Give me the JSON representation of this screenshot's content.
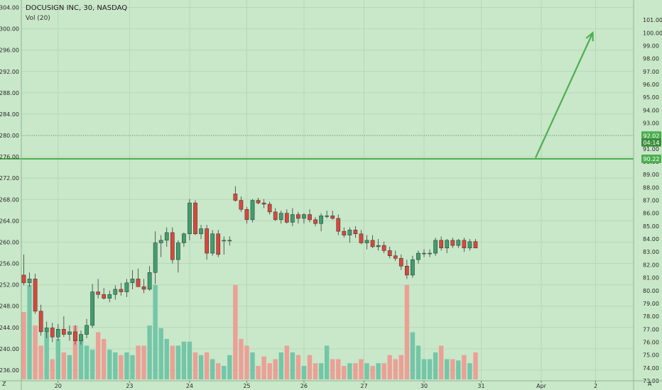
{
  "title": "DOCUSIGN INC, 30, NASDAQ",
  "subtitle": "Vol (20)",
  "corner_left": "Z",
  "corner_right": "A",
  "colors": {
    "background": "#c9e7c9",
    "grid": "#b7d8b7",
    "up": "#3e9f6e",
    "down": "#d9473b",
    "vol_up": "#74c6a8",
    "vol_down": "#eba096",
    "support_line": "#4caf50",
    "arrow": "#4caf50",
    "badge": "#4caf50",
    "badge_dark": "#3b8f3b",
    "axis_text": "#2b2b2b"
  },
  "chart_data": {
    "type": "candlestick",
    "left_axis": {
      "ticks": [
        "236.00",
        "240.00",
        "244.00",
        "248.00",
        "252.00",
        "256.00",
        "260.00",
        "264.00",
        "268.00",
        "272.00",
        "276.00",
        "280.00",
        "284.00",
        "288.00",
        "292.00",
        "296.00",
        "300.00",
        "304.00"
      ],
      "range": [
        234,
        305
      ]
    },
    "right_axis": {
      "ticks": [
        "73.00",
        "74.00",
        "75.00",
        "76.00",
        "77.00",
        "78.00",
        "79.00",
        "80.00",
        "81.00",
        "82.00",
        "83.00",
        "84.00",
        "85.00",
        "86.00",
        "87.00",
        "88.00",
        "89.00",
        "90.00",
        "91.00",
        "92.00",
        "93.00",
        "94.00",
        "95.00",
        "96.00",
        "97.00",
        "98.00",
        "99.00",
        "100.00",
        "101.00"
      ],
      "range": [
        73,
        101.5
      ]
    },
    "x_axis": {
      "labels": [
        "20",
        "23",
        "24",
        "25",
        "26",
        "27",
        "30",
        "31",
        "Apr",
        "2"
      ],
      "label_index": [
        6,
        18.5,
        29,
        39,
        49,
        59.5,
        70,
        80,
        90.5,
        100
      ]
    },
    "support_level": 90.22,
    "last_price": 92.02,
    "badges": [
      {
        "text": "92.02",
        "value": 92.02
      },
      {
        "text": "04:14",
        "value": 91.5
      },
      {
        "text": "90.22",
        "value": 90.22
      }
    ],
    "arrow": {
      "from": [
        89.5,
        90.3
      ],
      "to": [
        99.5,
        100.0
      ]
    },
    "candles": [
      [
        81.2,
        82.8,
        80.4,
        80.6,
        50
      ],
      [
        80.6,
        81.4,
        80.3,
        80.9,
        70
      ],
      [
        80.9,
        81.3,
        78.2,
        78.4,
        40
      ],
      [
        78.4,
        78.9,
        76.5,
        76.8,
        25
      ],
      [
        76.8,
        77.6,
        76.3,
        77.1,
        35
      ],
      [
        77.1,
        77.5,
        76.0,
        76.4,
        15
      ],
      [
        76.4,
        77.4,
        76.1,
        77.0,
        30
      ],
      [
        77.0,
        78.0,
        76.4,
        76.6,
        20
      ],
      [
        76.6,
        77.3,
        76.1,
        76.8,
        18
      ],
      [
        76.8,
        77.3,
        75.8,
        76.1,
        40
      ],
      [
        76.1,
        76.9,
        75.8,
        76.6,
        30
      ],
      [
        76.6,
        77.8,
        76.3,
        77.3,
        25
      ],
      [
        77.3,
        80.5,
        77.1,
        79.9,
        22
      ],
      [
        79.9,
        80.9,
        79.4,
        79.7,
        35
      ],
      [
        79.7,
        80.2,
        79.3,
        79.4,
        30
      ],
      [
        79.4,
        80.0,
        79.1,
        79.7,
        22
      ],
      [
        79.7,
        80.4,
        79.3,
        80.1,
        20
      ],
      [
        80.1,
        80.6,
        79.6,
        79.9,
        18
      ],
      [
        79.9,
        80.9,
        79.5,
        80.6,
        20
      ],
      [
        80.6,
        81.6,
        80.1,
        80.9,
        18
      ],
      [
        80.9,
        81.7,
        80.3,
        80.3,
        25
      ],
      [
        80.3,
        80.9,
        79.8,
        80.1,
        25
      ],
      [
        80.1,
        81.9,
        80.0,
        81.4,
        40
      ],
      [
        81.4,
        84.6,
        80.5,
        83.7,
        70
      ],
      [
        83.7,
        84.3,
        82.6,
        83.9,
        38
      ],
      [
        83.9,
        84.9,
        83.4,
        84.5,
        30
      ],
      [
        84.5,
        84.9,
        82.1,
        82.4,
        25
      ],
      [
        82.4,
        83.9,
        81.4,
        83.7,
        25
      ],
      [
        83.7,
        84.5,
        83.4,
        84.4,
        28
      ],
      [
        84.4,
        87.1,
        83.9,
        86.8,
        28
      ],
      [
        86.8,
        87.0,
        84.3,
        84.4,
        20
      ],
      [
        84.4,
        85.1,
        84.0,
        84.8,
        18
      ],
      [
        84.8,
        85.1,
        82.4,
        82.9,
        20
      ],
      [
        82.9,
        84.7,
        82.7,
        84.4,
        15
      ],
      [
        84.4,
        84.7,
        82.6,
        82.8,
        12
      ],
      [
        83.9,
        84.2,
        82.8,
        83.9,
        10
      ],
      [
        83.9,
        84.2,
        83.5,
        83.9,
        18
      ],
      [
        87.5,
        88.1,
        86.9,
        87.0,
        70
      ],
      [
        87.0,
        87.3,
        86.1,
        86.3,
        30
      ],
      [
        86.3,
        86.5,
        85.2,
        85.5,
        25
      ],
      [
        85.5,
        87.1,
        85.3,
        87.0,
        20
      ],
      [
        87.0,
        87.2,
        86.7,
        86.8,
        10
      ],
      [
        86.8,
        87.1,
        86.4,
        86.7,
        17
      ],
      [
        86.7,
        86.9,
        85.9,
        86.1,
        12
      ],
      [
        86.1,
        86.4,
        85.4,
        85.5,
        15
      ],
      [
        85.5,
        86.2,
        85.2,
        86.0,
        20
      ],
      [
        86.0,
        86.3,
        85.2,
        85.3,
        25
      ],
      [
        85.3,
        86.4,
        85.0,
        85.9,
        20
      ],
      [
        85.9,
        86.1,
        85.2,
        85.6,
        18
      ],
      [
        85.6,
        86.0,
        85.2,
        85.9,
        10
      ],
      [
        85.9,
        86.3,
        85.3,
        85.5,
        18
      ],
      [
        85.5,
        85.7,
        85.0,
        85.2,
        12
      ],
      [
        85.2,
        86.0,
        84.6,
        85.8,
        12
      ],
      [
        85.8,
        86.2,
        85.6,
        85.8,
        25
      ],
      [
        85.8,
        86.2,
        85.5,
        85.6,
        15
      ],
      [
        85.6,
        85.9,
        84.3,
        84.6,
        15
      ],
      [
        84.6,
        84.9,
        84.1,
        84.3,
        10
      ],
      [
        84.3,
        84.9,
        83.7,
        84.7,
        12
      ],
      [
        84.7,
        85.0,
        84.1,
        84.4,
        12
      ],
      [
        84.4,
        84.7,
        83.6,
        83.7,
        15
      ],
      [
        83.7,
        84.3,
        83.2,
        83.9,
        12
      ],
      [
        83.9,
        84.3,
        83.3,
        83.4,
        10
      ],
      [
        83.4,
        84.0,
        83.1,
        83.5,
        12
      ],
      [
        83.5,
        83.8,
        82.9,
        83.1,
        12
      ],
      [
        83.1,
        83.4,
        82.5,
        82.7,
        18
      ],
      [
        82.7,
        83.1,
        82.3,
        82.5,
        15
      ],
      [
        82.5,
        82.8,
        81.6,
        81.9,
        18
      ],
      [
        81.9,
        82.4,
        80.9,
        81.2,
        70
      ],
      [
        81.2,
        82.7,
        81.0,
        82.4,
        35
      ],
      [
        82.4,
        83.1,
        82.1,
        82.9,
        25
      ],
      [
        82.9,
        83.2,
        82.6,
        82.9,
        15
      ],
      [
        82.9,
        83.2,
        82.6,
        82.9,
        15
      ],
      [
        82.9,
        84.1,
        82.7,
        83.9,
        20
      ],
      [
        83.9,
        84.2,
        83.1,
        83.3,
        25
      ],
      [
        83.3,
        84.0,
        82.9,
        83.9,
        15
      ],
      [
        83.9,
        84.1,
        83.3,
        83.5,
        15
      ],
      [
        83.5,
        84.0,
        83.3,
        83.9,
        14
      ],
      [
        83.9,
        84.1,
        83.0,
        83.3,
        18
      ],
      [
        83.3,
        84.0,
        83.1,
        83.8,
        12
      ],
      [
        83.8,
        84.0,
        83.3,
        83.3,
        20
      ]
    ]
  }
}
